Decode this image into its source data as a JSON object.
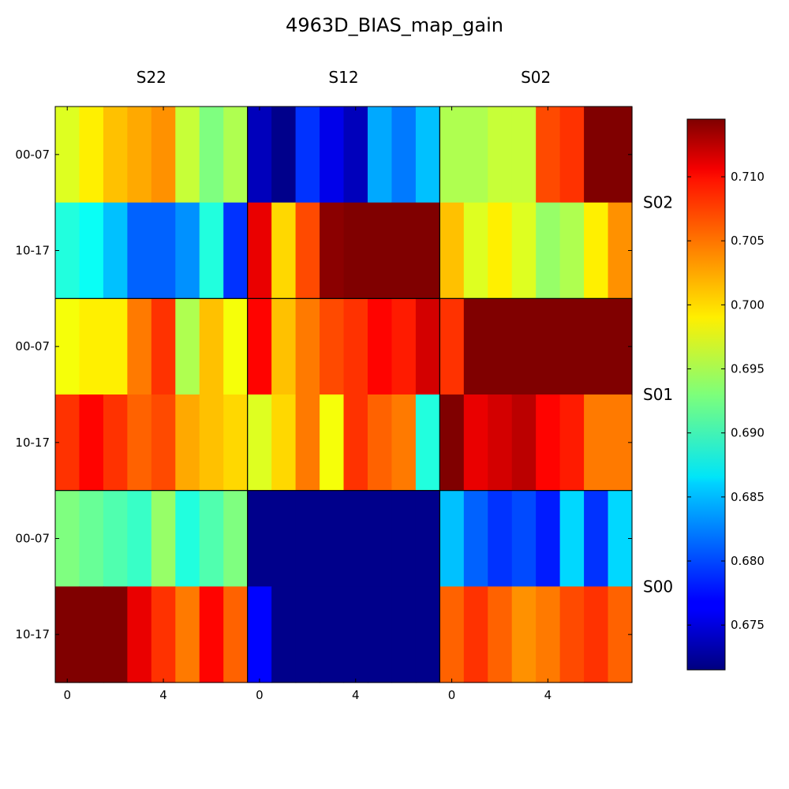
{
  "chart_data": {
    "type": "heatmap",
    "title": "4963D_BIAS_map_gain",
    "column_panels": [
      "S22",
      "S12",
      "S02"
    ],
    "row_panels": [
      "S02",
      "S01",
      "S00"
    ],
    "row_labels": [
      "00-07",
      "10-17"
    ],
    "x_tick_labels": [
      "0",
      "4"
    ],
    "x_tick_values": [
      0,
      4
    ],
    "colormap": "jet",
    "vmin": 0.6715,
    "vmax": 0.7145,
    "colorbar_ticks": [
      "0.675",
      "0.680",
      "0.685",
      "0.690",
      "0.695",
      "0.700",
      "0.705",
      "0.710"
    ],
    "colorbar_tick_values": [
      0.675,
      0.68,
      0.685,
      0.69,
      0.695,
      0.7,
      0.705,
      0.71
    ],
    "grid": [
      [
        [
          [
            0.697,
            0.699,
            0.701,
            0.702,
            0.703,
            0.696,
            0.693,
            0.695
          ],
          [
            0.689,
            0.688,
            0.685,
            0.681,
            0.681,
            0.683,
            0.689,
            0.679
          ]
        ],
        [
          [
            0.674,
            0.672,
            0.679,
            0.676,
            0.674,
            0.684,
            0.682,
            0.685
          ],
          [
            0.71,
            0.7,
            0.706,
            0.714,
            0.715,
            0.715,
            0.715,
            0.715
          ]
        ],
        [
          [
            0.695,
            0.695,
            0.696,
            0.696,
            0.706,
            0.707,
            0.715,
            0.715
          ],
          [
            0.701,
            0.697,
            0.699,
            0.697,
            0.694,
            0.695,
            0.699,
            0.703
          ]
        ]
      ],
      [
        [
          [
            0.698,
            0.699,
            0.699,
            0.704,
            0.707,
            0.695,
            0.701,
            0.698
          ],
          [
            0.707,
            0.709,
            0.707,
            0.705,
            0.706,
            0.702,
            0.701,
            0.7
          ]
        ],
        [
          [
            0.709,
            0.701,
            0.704,
            0.706,
            0.707,
            0.709,
            0.708,
            0.711
          ],
          [
            0.697,
            0.7,
            0.704,
            0.698,
            0.707,
            0.705,
            0.704,
            0.689
          ]
        ],
        [
          [
            0.707,
            0.715,
            0.715,
            0.715,
            0.715,
            0.715,
            0.715,
            0.715
          ],
          [
            0.715,
            0.71,
            0.711,
            0.712,
            0.709,
            0.708,
            0.704,
            0.704
          ]
        ]
      ],
      [
        [
          [
            0.693,
            0.692,
            0.691,
            0.69,
            0.694,
            0.689,
            0.691,
            0.693
          ],
          [
            0.715,
            0.715,
            0.715,
            0.71,
            0.707,
            0.704,
            0.709,
            0.705
          ]
        ],
        [
          [
            0.672,
            0.672,
            0.672,
            0.672,
            0.672,
            0.672,
            0.672,
            0.672
          ],
          [
            0.677,
            0.672,
            0.672,
            0.672,
            0.672,
            0.672,
            0.672,
            0.672
          ]
        ],
        [
          [
            0.685,
            0.681,
            0.679,
            0.68,
            0.678,
            0.686,
            0.679,
            0.686
          ],
          [
            0.705,
            0.707,
            0.705,
            0.703,
            0.704,
            0.706,
            0.707,
            0.705
          ]
        ]
      ]
    ]
  }
}
